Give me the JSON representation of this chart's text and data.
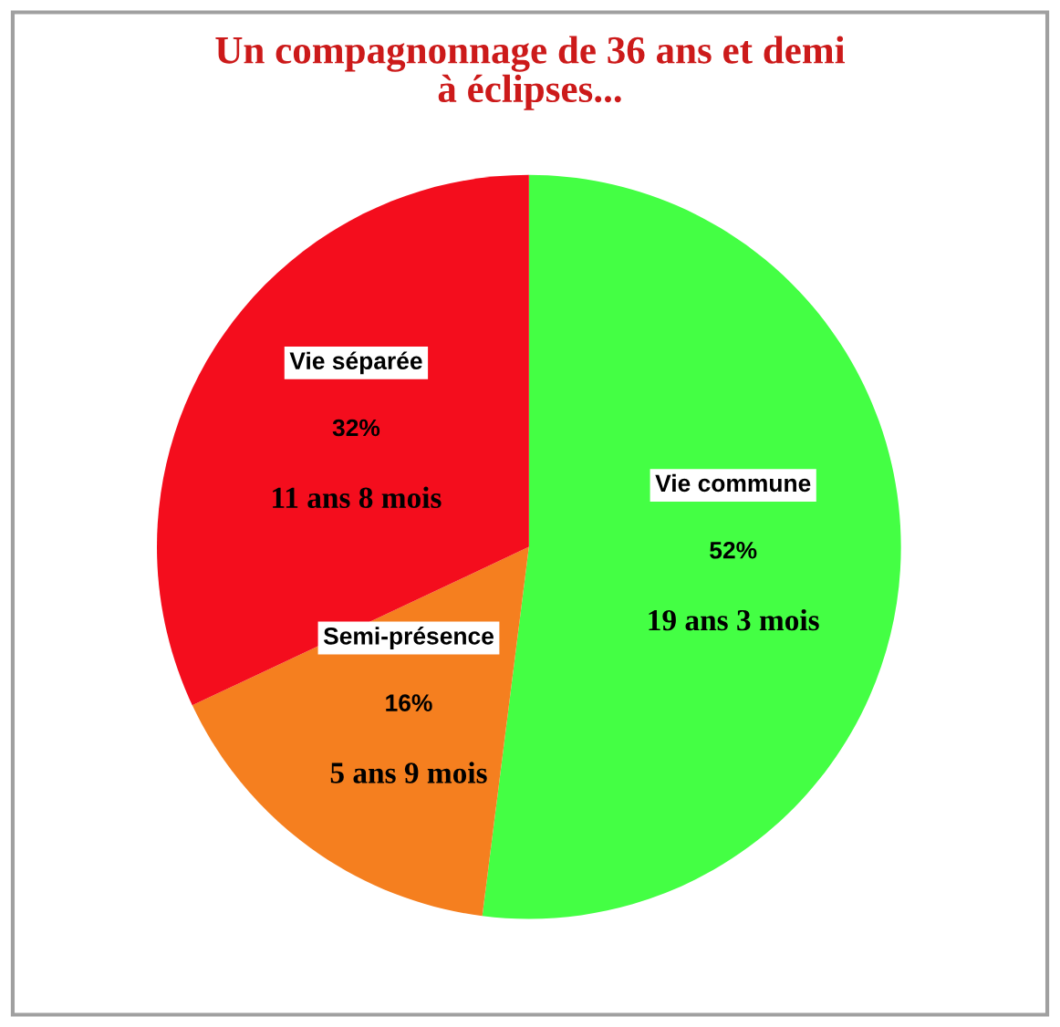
{
  "chart_data": {
    "type": "pie",
    "title": "Un compagnonnage de 36 ans et demi\nà éclipses...",
    "categories": [
      "Vie commune",
      "Semi-présence",
      "Vie séparée"
    ],
    "values": [
      52,
      16,
      32
    ],
    "colors": [
      "#44ff44",
      "#f57f1f",
      "#f40d1d"
    ],
    "value_labels": [
      "52%",
      "16%",
      "32%"
    ],
    "annotations": [
      "19 ans 3 mois",
      "5 ans 9 mois",
      "11 ans 8 mois"
    ],
    "legend": false
  }
}
